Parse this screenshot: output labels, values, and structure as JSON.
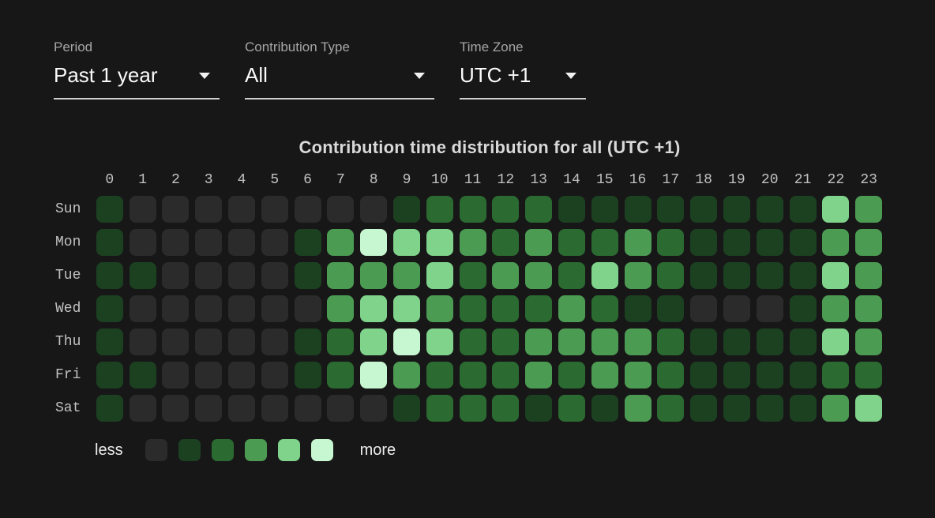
{
  "filters": [
    {
      "label": "Period",
      "value": "Past 1 year"
    },
    {
      "label": "Contribution Type",
      "value": "All"
    },
    {
      "label": "Time Zone",
      "value": "UTC +1"
    }
  ],
  "chart_data": {
    "type": "heatmap",
    "title": "Contribution time distribution for all (UTC +1)",
    "x_labels": [
      "0",
      "1",
      "2",
      "3",
      "4",
      "5",
      "6",
      "7",
      "8",
      "9",
      "10",
      "11",
      "12",
      "13",
      "14",
      "15",
      "16",
      "17",
      "18",
      "19",
      "20",
      "21",
      "22",
      "23"
    ],
    "y_labels": [
      "Sun",
      "Mon",
      "Tue",
      "Wed",
      "Thu",
      "Fri",
      "Sat"
    ],
    "levels": [
      [
        1,
        0,
        0,
        0,
        0,
        0,
        0,
        0,
        0,
        1,
        2,
        2,
        2,
        2,
        1,
        1,
        1,
        1,
        1,
        1,
        1,
        1,
        4,
        3
      ],
      [
        1,
        0,
        0,
        0,
        0,
        0,
        1,
        3,
        5,
        4,
        4,
        3,
        2,
        3,
        2,
        2,
        3,
        2,
        1,
        1,
        1,
        1,
        3,
        3
      ],
      [
        1,
        1,
        0,
        0,
        0,
        0,
        1,
        3,
        3,
        3,
        4,
        2,
        3,
        3,
        2,
        4,
        3,
        2,
        1,
        1,
        1,
        1,
        4,
        3
      ],
      [
        1,
        0,
        0,
        0,
        0,
        0,
        0,
        3,
        4,
        4,
        3,
        2,
        2,
        2,
        3,
        2,
        1,
        1,
        0,
        0,
        0,
        1,
        3,
        3
      ],
      [
        1,
        0,
        0,
        0,
        0,
        0,
        1,
        2,
        4,
        5,
        4,
        2,
        2,
        3,
        3,
        3,
        3,
        2,
        1,
        1,
        1,
        1,
        4,
        3
      ],
      [
        1,
        1,
        0,
        0,
        0,
        0,
        1,
        2,
        5,
        3,
        2,
        2,
        2,
        3,
        2,
        3,
        3,
        2,
        1,
        1,
        1,
        1,
        2,
        2
      ],
      [
        1,
        0,
        0,
        0,
        0,
        0,
        0,
        0,
        0,
        1,
        2,
        2,
        2,
        1,
        2,
        1,
        3,
        2,
        1,
        1,
        1,
        1,
        3,
        4
      ]
    ],
    "palette": [
      "#2b2b2b",
      "#1c4121",
      "#2b6a30",
      "#4c9b53",
      "#7fd38a",
      "#c7f7d0"
    ],
    "legend": {
      "less": "less",
      "more": "more"
    },
    "x_axis_position": "top",
    "legend_position": "bottom",
    "grid": false
  },
  "colors": {
    "background": "#171718",
    "accent_green": "#2b6a30",
    "text_primary": "#fafafa",
    "text_secondary": "#a6a6a6"
  }
}
